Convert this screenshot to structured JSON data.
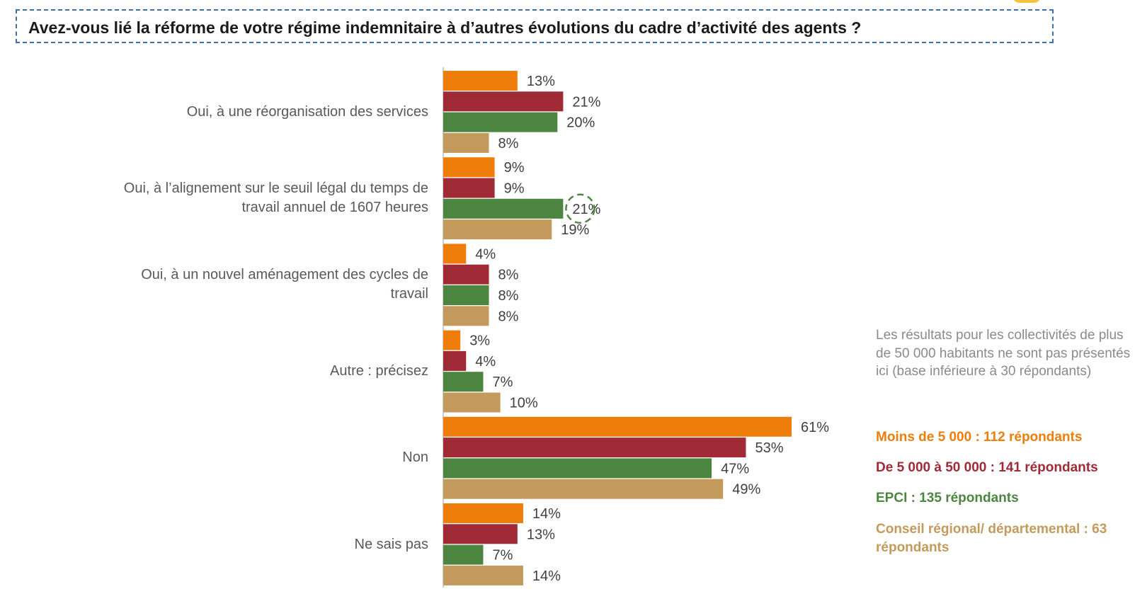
{
  "title": "Avez-vous lié la réforme de votre régime indemnitaire à d’autres évolutions du cadre d’activité des agents ?",
  "note": "Les résultats pour les collectivités de plus de 50 000 habitants ne sont pas présentés ici (base inférieure à 30 répondants)",
  "legend": [
    {
      "label": "Moins de 5 000 : 112 répondants",
      "color": "#ef7d0a"
    },
    {
      "label": "De 5 000 à 50 000 : 141 répondants",
      "color": "#a02b37"
    },
    {
      "label": "EPCI : 135 répondants",
      "color": "#4b8540"
    },
    {
      "label": "Conseil régional/ départemental : 63 répondants",
      "color": "#c39a5c"
    }
  ],
  "chart_data": {
    "type": "bar",
    "orientation": "horizontal",
    "categories": [
      "Oui, à une réorganisation des services",
      "Oui, à l’alignement sur le seuil légal du temps de travail annuel de 1607 heures",
      "Oui, à un nouvel aménagement des cycles de travail",
      "Autre : précisez",
      "Non",
      "Ne sais pas"
    ],
    "category_lines": [
      [
        "Oui, à une réorganisation des services"
      ],
      [
        "Oui, à l’alignement sur le seuil légal du temps de",
        "travail annuel de 1607 heures"
      ],
      [
        "Oui, à un nouvel aménagement des cycles de",
        "travail"
      ],
      [
        "Autre : précisez"
      ],
      [
        "Non"
      ],
      [
        "Ne sais pas"
      ]
    ],
    "series": [
      {
        "name": "Moins de 5 000 : 112 répondants",
        "color": "#ef7d0a",
        "values": [
          13,
          9,
          4,
          3,
          61,
          14
        ]
      },
      {
        "name": "De 5 000 à 50 000 : 141 répondants",
        "color": "#a02b37",
        "values": [
          21,
          9,
          8,
          4,
          53,
          13
        ]
      },
      {
        "name": "EPCI : 135 répondants",
        "color": "#4b8540",
        "values": [
          20,
          21,
          8,
          7,
          47,
          7
        ]
      },
      {
        "name": "Conseil régional/ départemental : 63 répondants",
        "color": "#c39a5c",
        "values": [
          8,
          19,
          8,
          10,
          49,
          14
        ]
      }
    ],
    "value_suffix": "%",
    "xlim": [
      0,
      61
    ],
    "highlight": {
      "category_index": 1,
      "series_index": 2
    },
    "grid": false,
    "legend_position": "right"
  }
}
